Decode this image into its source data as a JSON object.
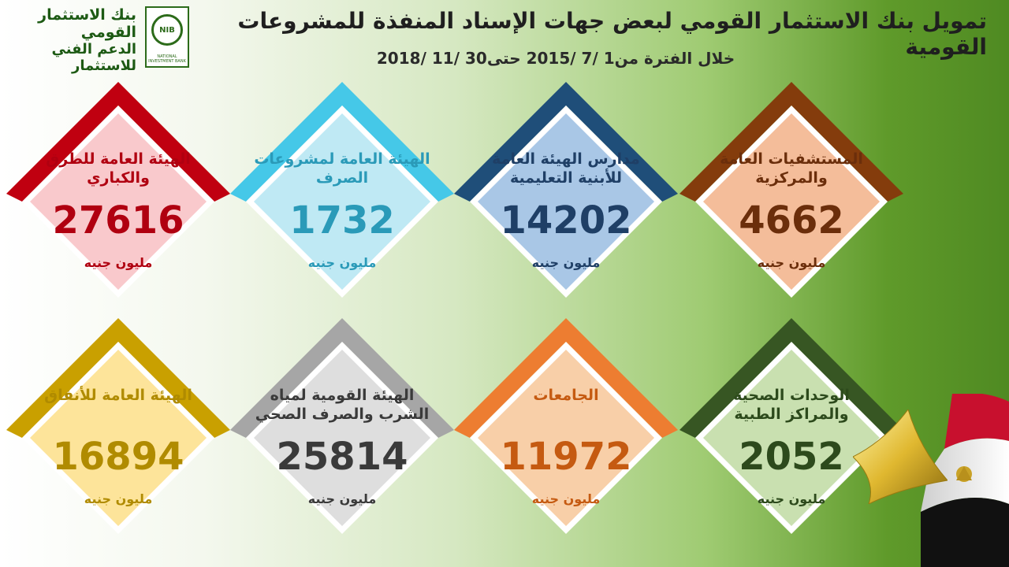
{
  "header": {
    "bank_name": "بنك الاستثمار القومي",
    "bank_sub": "الدعم الفني للاستثمار",
    "logo_text": "NIB",
    "logo_caption": "NATIONAL INVESTMENT BANK",
    "title": "تمويل بنك الاستثمار القومي لبعض جهات الإسناد المنفذة للمشروعات القومية",
    "subtitle": "خلال الفترة من1 /7 /2015 حتى30 /11 /2018"
  },
  "cards": [
    {
      "label": "الهيئة العامة للطرق والكباري",
      "value": "27616",
      "unit": "مليون جنيه",
      "accent": "#c00010",
      "fill": "#f9c9cc",
      "text_color": "#b00010"
    },
    {
      "label": "الهيئة العامة لمشروعات الصرف",
      "value": "1732",
      "unit": "مليون جنيه",
      "accent": "#45c8e8",
      "fill": "#bfe9f4",
      "text_color": "#2a9ab8"
    },
    {
      "label": "مدارس الهيئة العامة للأبنية التعليمية",
      "value": "14202",
      "unit": "مليون جنيه",
      "accent": "#1f4e79",
      "fill": "#a9c7e6",
      "text_color": "#1f3f66"
    },
    {
      "label": "المستشفيات العامة والمركزية",
      "value": "4662",
      "unit": "مليون جنيه",
      "accent": "#843c0c",
      "fill": "#f4bd9a",
      "text_color": "#6b2e0b"
    },
    {
      "label": "الهيئة العامة للأنفاق",
      "value": "16894",
      "unit": "مليون جنيه",
      "accent": "#c9a000",
      "fill": "#fde49a",
      "text_color": "#b08b00"
    },
    {
      "label": "الهيئة القومية لمياه الشرب والصرف الصحي",
      "value": "25814",
      "unit": "مليون جنيه",
      "accent": "#a6a6a6",
      "fill": "#dedede",
      "text_color": "#3a3a3a"
    },
    {
      "label": "الجامعات",
      "value": "11972",
      "unit": "مليون جنيه",
      "accent": "#ed7d31",
      "fill": "#f8cfa8",
      "text_color": "#c55a11"
    },
    {
      "label": "الوحدات الصحية والمراكز الطبية",
      "value": "2052",
      "unit": "مليون جنيه",
      "accent": "#375623",
      "fill": "#c9e0b0",
      "text_color": "#2d4a1c"
    }
  ]
}
